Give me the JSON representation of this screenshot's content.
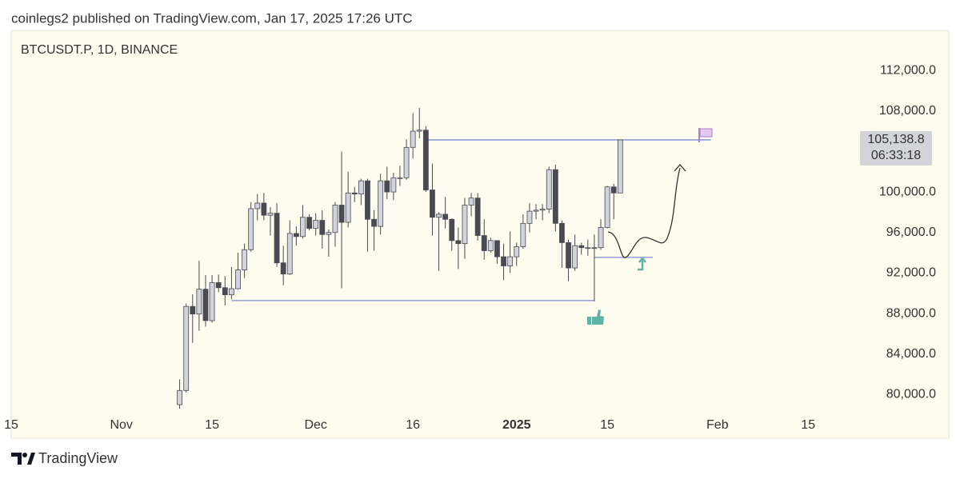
{
  "header": "coinlegs2 published on TradingView.com, Jan 17, 2025 17:26 UTC",
  "footer": "TradingView",
  "chart_data": {
    "type": "candlestick",
    "title": "BTCUSDT.P, 1D, BINANCE",
    "x": [
      "2024-11-10",
      "2024-11-11",
      "2024-11-12",
      "2024-11-13",
      "2024-11-14",
      "2024-11-15",
      "2024-11-16",
      "2024-11-17",
      "2024-11-18",
      "2024-11-19",
      "2024-11-20",
      "2024-11-21",
      "2024-11-22",
      "2024-11-23",
      "2024-11-24",
      "2024-11-25",
      "2024-11-26",
      "2024-11-27",
      "2024-11-28",
      "2024-11-29",
      "2024-11-30",
      "2024-12-01",
      "2024-12-02",
      "2024-12-03",
      "2024-12-04",
      "2024-12-05",
      "2024-12-06",
      "2024-12-07",
      "2024-12-08",
      "2024-12-09",
      "2024-12-10",
      "2024-12-11",
      "2024-12-12",
      "2024-12-13",
      "2024-12-14",
      "2024-12-15",
      "2024-12-16",
      "2024-12-17",
      "2024-12-18",
      "2024-12-19",
      "2024-12-20",
      "2024-12-21",
      "2024-12-22",
      "2024-12-23",
      "2024-12-24",
      "2024-12-25",
      "2024-12-26",
      "2024-12-27",
      "2024-12-28",
      "2024-12-29",
      "2024-12-30",
      "2024-12-31",
      "2025-01-01",
      "2025-01-02",
      "2025-01-03",
      "2025-01-04",
      "2025-01-05",
      "2025-01-06",
      "2025-01-07",
      "2025-01-08",
      "2025-01-09",
      "2025-01-10",
      "2025-01-11",
      "2025-01-12",
      "2025-01-13",
      "2025-01-14",
      "2025-01-15",
      "2025-01-16",
      "2025-01-17"
    ],
    "open": [
      79000,
      80400,
      88700,
      87950,
      90400,
      87300,
      91050,
      90550,
      89850,
      90450,
      92300,
      94300,
      98350,
      98900,
      97700,
      97900,
      93000,
      91900,
      95900,
      95600,
      97500,
      96400,
      97200,
      95800,
      96000,
      98700,
      97000,
      99900,
      99800,
      101100,
      97300,
      96600,
      101100,
      100000,
      101400,
      101400,
      104400,
      106000,
      106100,
      100200,
      97500,
      97800,
      97300,
      95200,
      94900,
      98700,
      99400,
      95700,
      94200,
      95200,
      93600,
      92700,
      93600,
      94600,
      96900,
      98100,
      98200,
      98300,
      102200,
      96900,
      95000,
      92500,
      94700,
      94500,
      94500,
      94500,
      96500,
      100500,
      99900
    ],
    "high": [
      81500,
      89000,
      89900,
      93200,
      91800,
      91800,
      91850,
      91700,
      92600,
      94000,
      94900,
      99000,
      99800,
      99900,
      98500,
      98900,
      94700,
      97200,
      96600,
      98700,
      97800,
      97900,
      98200,
      96300,
      99000,
      104000,
      102000,
      100500,
      101300,
      101300,
      98200,
      101800,
      102500,
      101900,
      102600,
      105200,
      107800,
      108300,
      106500,
      102800,
      98000,
      99500,
      97400,
      96500,
      99400,
      99900,
      99900,
      97300,
      95500,
      95200,
      94900,
      96100,
      95000,
      97800,
      98900,
      98800,
      98800,
      102500,
      102700,
      97200,
      95300,
      95800,
      95000,
      95300,
      95800,
      97300,
      100600,
      100800,
      105138.8
    ],
    "low": [
      78600,
      80200,
      85100,
      86300,
      86700,
      87100,
      90100,
      88800,
      89400,
      90400,
      91500,
      94100,
      97200,
      97200,
      95700,
      92600,
      90800,
      91800,
      94700,
      95400,
      96200,
      95700,
      94400,
      93600,
      94600,
      90500,
      96500,
      99000,
      98700,
      94100,
      94200,
      95800,
      99300,
      99200,
      100600,
      101200,
      103300,
      105300,
      100000,
      95700,
      92200,
      96400,
      94200,
      92400,
      93400,
      97600,
      95200,
      93300,
      94000,
      92900,
      91300,
      92000,
      92700,
      94400,
      96000,
      97300,
      97200,
      97900,
      96100,
      92500,
      91200,
      92200,
      93800,
      93700,
      89200,
      94300,
      96400,
      97300,
      99900
    ],
    "close": [
      80400,
      88700,
      87950,
      90400,
      87300,
      91050,
      90550,
      89850,
      90450,
      92300,
      94300,
      98350,
      98900,
      97700,
      97900,
      93000,
      91900,
      95900,
      95600,
      97500,
      96400,
      97200,
      95800,
      96000,
      98700,
      97000,
      99900,
      99800,
      101100,
      97300,
      96600,
      101100,
      100000,
      101400,
      101400,
      104400,
      106000,
      106100,
      100200,
      97500,
      97800,
      97300,
      95200,
      94900,
      98700,
      99400,
      95700,
      94200,
      95200,
      93600,
      92700,
      93600,
      94600,
      96900,
      98100,
      98200,
      98300,
      102200,
      96900,
      95000,
      92500,
      94700,
      94500,
      94500,
      94500,
      96500,
      100500,
      99900,
      105138.8
    ],
    "up_color": "#d1d4dc",
    "down_color": "#4a4a55",
    "hlines": [
      {
        "value": 105138.8,
        "start": "2024-12-18",
        "end": "2025-01-31"
      },
      {
        "value": 89280,
        "start": "2024-11-18",
        "end": "2025-01-13"
      },
      {
        "value": 93540,
        "start": "2025-01-13",
        "end": "2025-01-22"
      }
    ],
    "line_color": "#7b8bd6",
    "last_price": {
      "value": 105138.8,
      "label": "105,138.8"
    },
    "countdown": "06:33:18",
    "xlim": [
      "2024-10-15",
      "2025-02-23"
    ],
    "xticks": [
      {
        "value": "2024-10-15",
        "label": "15"
      },
      {
        "value": "2024-11-01",
        "label": "Nov"
      },
      {
        "value": "2024-11-15",
        "label": "15"
      },
      {
        "value": "2024-12-01",
        "label": "Dec"
      },
      {
        "value": "2024-12-16",
        "label": "16"
      },
      {
        "value": "2025-01-01",
        "label": "2025"
      },
      {
        "value": "2025-01-15",
        "label": "15"
      },
      {
        "value": "2025-02-01",
        "label": "Feb"
      },
      {
        "value": "2025-02-15",
        "label": "15"
      }
    ],
    "ylim": [
      77900,
      115950
    ],
    "yticks": [
      {
        "value": 80000,
        "label": "80,000.0"
      },
      {
        "value": 84000,
        "label": "84,000.0"
      },
      {
        "value": 88000,
        "label": "88,000.0"
      },
      {
        "value": 92000,
        "label": "92,000.0"
      },
      {
        "value": 96000,
        "label": "96,000.0"
      },
      {
        "value": 100000,
        "label": "100,000.0"
      },
      {
        "value": 108000,
        "label": "108,000.0"
      },
      {
        "value": 112000,
        "label": "112,000.0"
      }
    ]
  }
}
